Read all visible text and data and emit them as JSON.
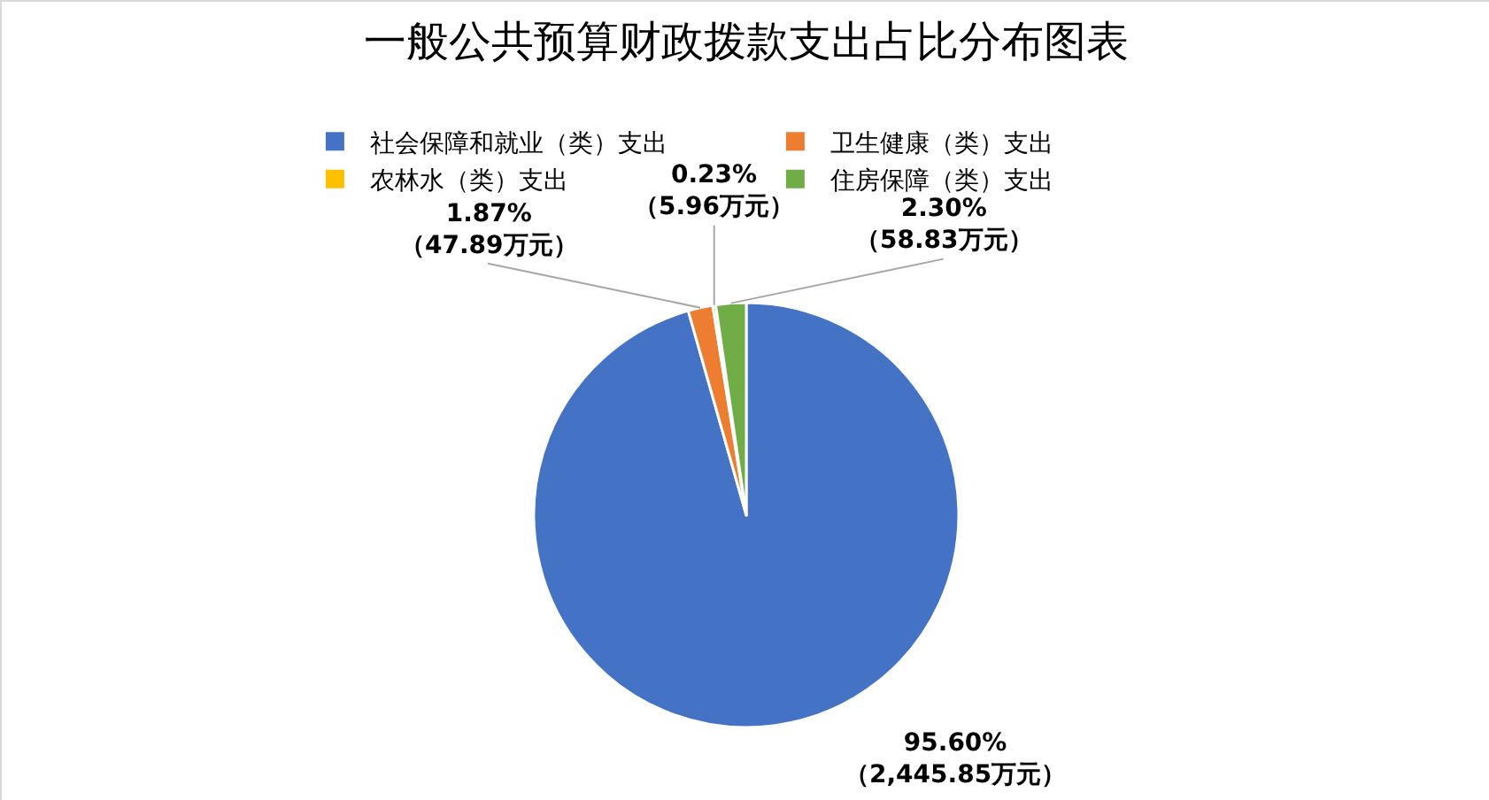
{
  "chart_data": {
    "type": "pie",
    "title": "一般公共预算财政拨款支出占比分布图表",
    "categories": [
      "社会保障和就业（类）支出",
      "卫生健康（类）支出",
      "农林水（类）支出",
      "住房保障（类）支出"
    ],
    "values": [
      2445.85,
      47.89,
      5.96,
      58.83
    ],
    "colors": [
      "#4472c4",
      "#ed7d31",
      "#ffc000",
      "#70ad47"
    ],
    "value_labels": [
      "95.60%\n（2,445.85万元）",
      "1.87%\n（47.89万元）",
      "0.23%\n（5.96万元）",
      "2.30%\n（58.83万元）"
    ],
    "legend": "top"
  }
}
